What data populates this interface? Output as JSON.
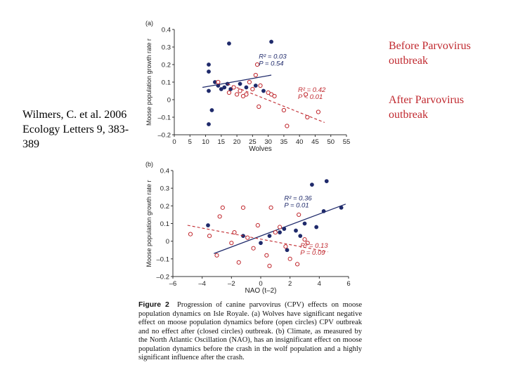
{
  "citation": "Wilmers, C. et al. 2006 Ecology Letters 9, 383-389",
  "notes": {
    "before": "Before Parvovirus outbreak",
    "after": "After Parvovirus outbreak"
  },
  "colors": {
    "before": "#c0282e",
    "after": "#1f2a6b"
  },
  "caption": {
    "label": "Figure 2",
    "text": "Progression of canine parvovirus (CPV) effects on moose population dynamics on Isle Royale. (a) Wolves have significant negative effect on moose population dynamics before (open circles) CPV outbreak and no effect after (closed circles) outbreak. (b) Climate, as measured by the North Atlantic Oscillation (NAO), has an insignificant effect on moose population dynamics before the crash in the wolf population and a highly significant influence after the crash."
  },
  "chart_data": [
    {
      "type": "scatter",
      "panel": "(a)",
      "xlabel": "Wolves",
      "ylabel": "Moose population growth rate r",
      "xlim": [
        0,
        55
      ],
      "ylim": [
        -0.2,
        0.4
      ],
      "xticks": [
        "0",
        "5",
        "10",
        "15",
        "20",
        "25",
        "30",
        "35",
        "40",
        "45",
        "50",
        "55"
      ],
      "yticks": [
        "0.4",
        "0.3",
        "0.2",
        "0.1",
        "0",
        "–0.1",
        "–0.2"
      ],
      "series": [
        {
          "marker": "closed",
          "points": [
            [
              11,
              0.2
            ],
            [
              11,
              0.16
            ],
            [
              11,
              0.05
            ],
            [
              11,
              -0.14
            ],
            [
              12,
              -0.06
            ],
            [
              13,
              0.1
            ],
            [
              14,
              0.08
            ],
            [
              15,
              0.06
            ],
            [
              16,
              0.07
            ],
            [
              17,
              0.09
            ],
            [
              17.5,
              0.32
            ],
            [
              18,
              0.06
            ],
            [
              21,
              0.09
            ],
            [
              23,
              0.07
            ],
            [
              26,
              0.08
            ],
            [
              28.5,
              0.05
            ],
            [
              31,
              0.33
            ]
          ],
          "fit": {
            "x": [
              9,
              31
            ],
            "y": [
              0.07,
              0.14
            ]
          },
          "stats": [
            "R² = 0.03",
            "P = 0.54"
          ]
        },
        {
          "marker": "open",
          "points": [
            [
              14,
              0.1
            ],
            [
              17.5,
              0.04
            ],
            [
              19,
              0.07
            ],
            [
              20,
              0.03
            ],
            [
              21,
              0.05
            ],
            [
              22,
              0.02
            ],
            [
              23,
              0.03
            ],
            [
              24,
              0.1
            ],
            [
              25,
              0.06
            ],
            [
              26,
              0.14
            ],
            [
              26.5,
              0.2
            ],
            [
              27,
              -0.04
            ],
            [
              27.5,
              0.08
            ],
            [
              30,
              0.04
            ],
            [
              31,
              0.03
            ],
            [
              32,
              0.02
            ],
            [
              35,
              -0.06
            ],
            [
              36,
              -0.15
            ],
            [
              42,
              0.03
            ],
            [
              42.5,
              -0.1
            ],
            [
              46,
              -0.07
            ]
          ],
          "fit": {
            "x": [
              17,
              48
            ],
            "y": [
              0.09,
              -0.13
            ]
          },
          "stats": [
            "R² = 0.42",
            "P < 0.01"
          ]
        }
      ]
    },
    {
      "type": "scatter",
      "panel": "(b)",
      "xlabel": "NAO (t–2)",
      "ylabel": "Moose population growth rate r",
      "xlim": [
        -6,
        6
      ],
      "ylim": [
        -0.2,
        0.4
      ],
      "xticks": [
        "–6",
        "–4",
        "–2",
        "0",
        "2",
        "4",
        "6"
      ],
      "yticks": [
        "0.4",
        "0.3",
        "0.2",
        "0.1",
        "0",
        "–0.1",
        "–0.2"
      ],
      "series": [
        {
          "marker": "closed",
          "points": [
            [
              -3.6,
              0.09
            ],
            [
              -1.2,
              0.03
            ],
            [
              0.6,
              0.03
            ],
            [
              1.3,
              0.05
            ],
            [
              1.6,
              0.07
            ],
            [
              2.4,
              0.06
            ],
            [
              2.7,
              0.03
            ],
            [
              3.0,
              0.1
            ],
            [
              3.5,
              0.32
            ],
            [
              3.8,
              0.08
            ],
            [
              4.3,
              0.17
            ],
            [
              4.5,
              0.34
            ],
            [
              5.5,
              0.19
            ],
            [
              0.0,
              -0.01
            ],
            [
              1.8,
              -0.05
            ]
          ],
          "fit": {
            "x": [
              -3.2,
              5.8
            ],
            "y": [
              -0.07,
              0.21
            ]
          },
          "stats": [
            "R² = 0.36",
            "P = 0.01"
          ]
        },
        {
          "marker": "open",
          "points": [
            [
              -4.8,
              0.04
            ],
            [
              -3.5,
              0.03
            ],
            [
              -3.0,
              -0.08
            ],
            [
              -2.8,
              0.14
            ],
            [
              -2.6,
              0.19
            ],
            [
              -2.0,
              -0.01
            ],
            [
              -1.8,
              0.05
            ],
            [
              -1.5,
              -0.12
            ],
            [
              -1.2,
              0.19
            ],
            [
              -0.9,
              0.02
            ],
            [
              -0.5,
              -0.04
            ],
            [
              -0.2,
              0.09
            ],
            [
              0.4,
              -0.08
            ],
            [
              0.6,
              -0.14
            ],
            [
              0.7,
              0.19
            ],
            [
              1.0,
              0.05
            ],
            [
              1.3,
              0.08
            ],
            [
              1.7,
              -0.03
            ],
            [
              2.0,
              -0.1
            ],
            [
              2.5,
              -0.13
            ],
            [
              2.6,
              0.15
            ],
            [
              3.0,
              0.01
            ],
            [
              3.2,
              -0.01
            ]
          ],
          "fit": {
            "x": [
              -5.0,
              4.6
            ],
            "y": [
              0.09,
              -0.06
            ]
          },
          "stats": [
            "R² = 0.13",
            "P = 0.09"
          ]
        }
      ]
    }
  ]
}
